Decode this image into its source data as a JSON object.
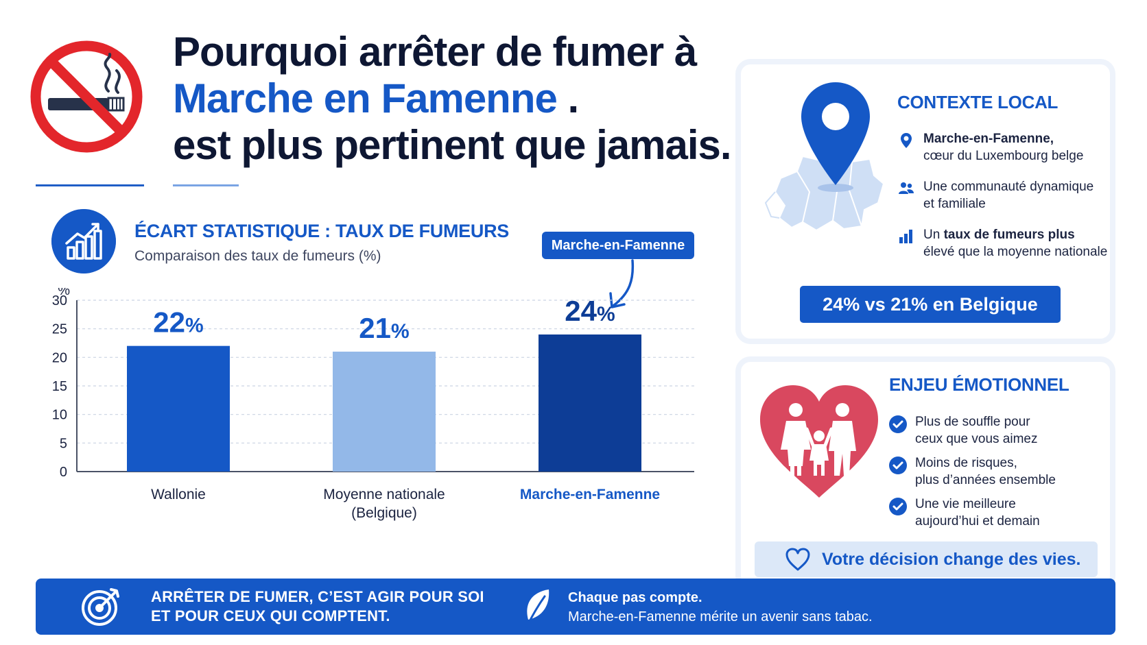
{
  "header": {
    "title_line1": "Pourquoi arrêter de fumer à",
    "title_line2_place": "Marche en Famenne",
    "title_line2_suffix": " .",
    "title_line3": "est plus pertinent que jamais."
  },
  "chart_section": {
    "title": "ÉCART STATISTIQUE : TAUX DE FUMEURS",
    "subtitle": "Comparaison des taux de fumeurs (%)",
    "callout": "Marche-en-Famenne"
  },
  "chart_data": {
    "type": "bar",
    "ylabel": "%",
    "ylim": [
      0,
      30
    ],
    "yticks": [
      0,
      5,
      10,
      15,
      20,
      25,
      30
    ],
    "grid": true,
    "categories": [
      "Wallonie",
      "Moyenne nationale (Belgique)",
      "Marche-en-Famenne"
    ],
    "category_lines": [
      [
        "Wallonie"
      ],
      [
        "Moyenne nationale",
        "(Belgique)"
      ],
      [
        "Marche-en-Famenne"
      ]
    ],
    "values": [
      22,
      21,
      24
    ],
    "value_labels": [
      "22",
      "21",
      "24"
    ],
    "value_unit": "%",
    "bar_colors": [
      "#1558c6",
      "#93b8e8",
      "#0d3d96"
    ],
    "highlight_index": 2
  },
  "contexte_local": {
    "heading": "CONTEXTE LOCAL",
    "items": [
      {
        "icon": "location-pin-icon",
        "bold": "Marche-en-Famenne,",
        "rest": "",
        "line2": "cœur du Luxembourg belge"
      },
      {
        "icon": "people-icon",
        "bold": "",
        "rest": "Une communauté dynamique",
        "line2": "et familiale"
      },
      {
        "icon": "bar-chart-icon",
        "pre": "Un ",
        "bold": "taux de fumeurs plus",
        "line2": "élevé que la moyenne nationale"
      }
    ],
    "badge": "24% vs 21% en Belgique"
  },
  "enjeu_emotionnel": {
    "heading": "ENJEU ÉMOTIONNEL",
    "items": [
      {
        "line1": "Plus de souffle pour",
        "line2": "ceux que vous aimez"
      },
      {
        "line1": "Moins de risques,",
        "line2": "plus d’années ensemble"
      },
      {
        "line1": "Une vie meilleure",
        "line2": "aujourd’hui et demain"
      }
    ],
    "decision": "Votre décision change des vies."
  },
  "footer": {
    "left_line1": "ARRÊTER DE FUMER, C’EST AGIR POUR SOI",
    "left_line2": "ET POUR CEUX QUI COMPTENT.",
    "right_line1": "Chaque pas compte.",
    "right_line2": "Marche-en-Famenne mérite un avenir sans tabac."
  },
  "colors": {
    "primary": "#1558c6",
    "dark_blue": "#0d3d96",
    "light_blue": "#93b8e8",
    "heart_red": "#d9485f",
    "no_smoking_red": "#e3262b"
  }
}
